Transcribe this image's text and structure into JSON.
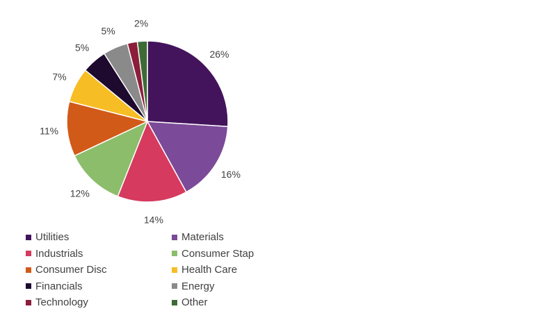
{
  "chart_data": {
    "type": "pie",
    "categories": [
      "Utilities",
      "Materials",
      "Industrials",
      "Consumer Stap",
      "Consumer Disc",
      "Health Care",
      "Financials",
      "Energy",
      "Technology",
      "Other"
    ],
    "values": [
      26,
      16,
      14,
      12,
      11,
      7,
      5,
      5,
      2,
      2
    ],
    "labels": [
      "26%",
      "16%",
      "14%",
      "12%",
      "11%",
      "7%",
      "5%",
      "5%",
      "",
      "2%"
    ],
    "colors": [
      "#43145c",
      "#7b4a98",
      "#d63a5e",
      "#8bbd6b",
      "#d25a19",
      "#f7bd24",
      "#1d0a2e",
      "#8a8a8a",
      "#8b1e3a",
      "#3e6b35"
    ],
    "legend_position": "bottom"
  },
  "legend": [
    {
      "label": "Utilities",
      "color": "#43145c"
    },
    {
      "label": "Materials",
      "color": "#7b4a98"
    },
    {
      "label": "Industrials",
      "color": "#d63a5e"
    },
    {
      "label": "Consumer Stap",
      "color": "#8bbd6b"
    },
    {
      "label": "Consumer Disc",
      "color": "#d25a19"
    },
    {
      "label": "Health Care",
      "color": "#f7bd24"
    },
    {
      "label": "Financials",
      "color": "#1d0a2e"
    },
    {
      "label": "Energy",
      "color": "#8a8a8a"
    },
    {
      "label": "Technology",
      "color": "#8b1e3a"
    },
    {
      "label": "Other",
      "color": "#3e6b35"
    }
  ]
}
